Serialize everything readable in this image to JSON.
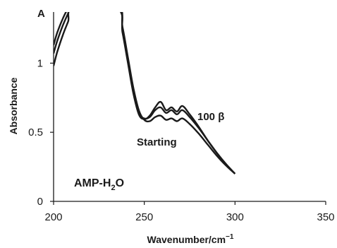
{
  "chart_data": {
    "type": "line",
    "panel_label": "A",
    "xlabel": "Wavenumber/cm",
    "xlabel_sup": "−1",
    "ylabel": "Absorbance",
    "xlim": [
      200,
      350
    ],
    "ylim": [
      0,
      1.37
    ],
    "xticks": [
      200,
      250,
      300,
      350
    ],
    "yticks": [
      0,
      0.5,
      1
    ],
    "ytick_labels": [
      "0",
      "0.5",
      "1"
    ],
    "grid": false,
    "annotations": [
      {
        "text": "100 β",
        "x": 279,
        "y": 0.63
      },
      {
        "text": "Starting",
        "x": 259,
        "y": 0.43
      }
    ],
    "sample_label": {
      "main": "AMP-H",
      "sub": "2",
      "tail": "O",
      "x": 210,
      "y": 0.1
    },
    "series": [
      {
        "x": [
          200,
          202,
          205,
          208,
          211,
          235,
          238,
          241,
          244,
          247,
          250,
          253,
          256,
          259,
          262,
          265,
          268,
          271,
          275,
          280,
          285,
          290,
          295,
          300
        ],
        "y": [
          1.13,
          1.22,
          1.32,
          1.4,
          1.48,
          1.4,
          1.22,
          1.0,
          0.78,
          0.63,
          0.595,
          0.62,
          0.68,
          0.72,
          0.66,
          0.68,
          0.65,
          0.69,
          0.63,
          0.54,
          0.44,
          0.35,
          0.27,
          0.2
        ]
      },
      {
        "x": [
          200,
          202,
          205,
          208,
          211,
          235,
          238,
          241,
          244,
          247,
          250,
          253,
          256,
          259,
          262,
          265,
          268,
          271,
          275,
          280,
          285,
          290,
          295,
          300
        ],
        "y": [
          1.07,
          1.16,
          1.27,
          1.36,
          1.45,
          1.4,
          1.24,
          1.02,
          0.8,
          0.64,
          0.6,
          0.61,
          0.66,
          0.68,
          0.64,
          0.66,
          0.63,
          0.66,
          0.61,
          0.53,
          0.44,
          0.35,
          0.27,
          0.2
        ]
      },
      {
        "x": [
          200,
          202,
          205,
          208,
          211,
          235,
          238,
          241,
          244,
          247,
          250,
          253,
          256,
          259,
          262,
          265,
          268,
          271,
          275,
          280,
          285,
          290,
          295,
          300
        ],
        "y": [
          0.98,
          1.08,
          1.2,
          1.3,
          1.4,
          1.41,
          1.26,
          1.04,
          0.82,
          0.66,
          0.59,
          0.58,
          0.61,
          0.62,
          0.59,
          0.6,
          0.58,
          0.6,
          0.56,
          0.49,
          0.41,
          0.33,
          0.26,
          0.2
        ]
      }
    ]
  }
}
